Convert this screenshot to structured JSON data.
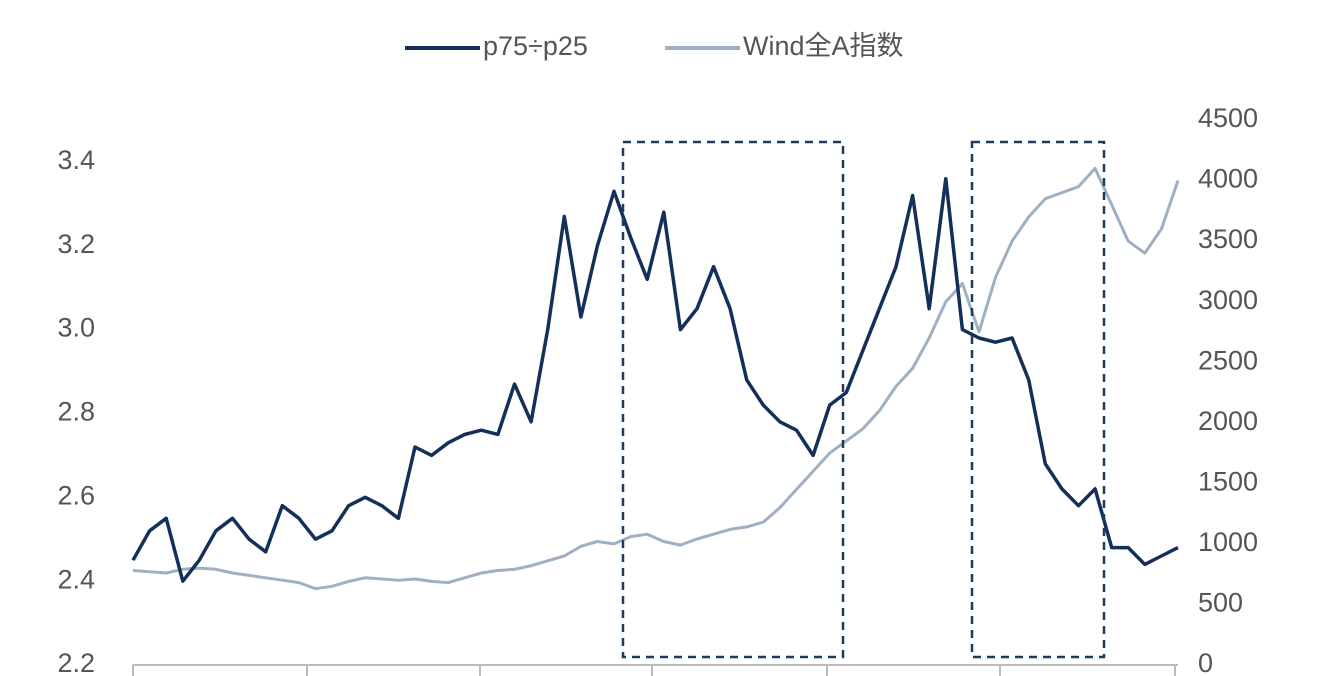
{
  "chart_data": {
    "type": "line",
    "categories": [
      null,
      null,
      null,
      null,
      null,
      null,
      null,
      null,
      null,
      null,
      null,
      null,
      null,
      null,
      null,
      null,
      null,
      null,
      null,
      null,
      null,
      null,
      null,
      null,
      null,
      null,
      null,
      null,
      null,
      null,
      null,
      null,
      null,
      null,
      null,
      null,
      null,
      null,
      null,
      null,
      null,
      null,
      null,
      null,
      null,
      null,
      null,
      null,
      null,
      null,
      null,
      null,
      null,
      null,
      null,
      null,
      null,
      null,
      null,
      null,
      null,
      null,
      null,
      null
    ],
    "series": [
      {
        "name": "p75÷p25",
        "color": "#132f5a",
        "values": [
          2.45,
          2.52,
          2.55,
          2.4,
          2.45,
          2.52,
          2.55,
          2.5,
          2.47,
          2.58,
          2.55,
          2.5,
          2.52,
          2.58,
          2.6,
          2.58,
          2.55,
          2.72,
          2.7,
          2.73,
          2.75,
          2.76,
          2.75,
          2.87,
          2.78,
          3.0,
          3.27,
          3.03,
          3.2,
          3.33,
          3.22,
          3.12,
          3.28,
          3.0,
          3.05,
          3.15,
          3.05,
          2.88,
          2.82,
          2.78,
          2.76,
          2.7,
          2.82,
          2.85,
          2.95,
          3.05,
          3.15,
          3.32,
          3.05,
          3.36,
          3.0,
          2.98,
          2.97,
          2.98,
          2.88,
          2.68,
          2.62,
          2.58,
          2.62,
          2.48,
          2.48,
          2.44,
          2.46,
          2.48
        ]
      },
      {
        "name": "Wind全A指数",
        "color": "#9fb0c2",
        "axis": "y2",
        "values": [
          780,
          770,
          760,
          790,
          800,
          790,
          760,
          740,
          720,
          700,
          680,
          630,
          650,
          690,
          720,
          710,
          700,
          710,
          690,
          680,
          720,
          760,
          780,
          790,
          820,
          860,
          900,
          980,
          1020,
          1000,
          1060,
          1080,
          1020,
          990,
          1040,
          1080,
          1120,
          1140,
          1180,
          1300,
          1450,
          1600,
          1750,
          1850,
          1950,
          2100,
          2300,
          2450,
          2700,
          3000,
          3150,
          2750,
          3200,
          3500,
          3700,
          3850,
          3900,
          3950,
          4100,
          3800,
          3500,
          3400,
          3600,
          4000
        ]
      }
    ],
    "ylim": [
      2.2,
      3.5
    ],
    "yticks": [
      2.2,
      2.4,
      2.6,
      2.8,
      {
        "value": 3.0,
        "label": "3.0"
      },
      3.2,
      3.4
    ],
    "y2lim": [
      0,
      4500
    ],
    "y2ticks": [
      0,
      500,
      1000,
      1500,
      2000,
      2500,
      3000,
      3500,
      4000,
      4500
    ]
  }
}
